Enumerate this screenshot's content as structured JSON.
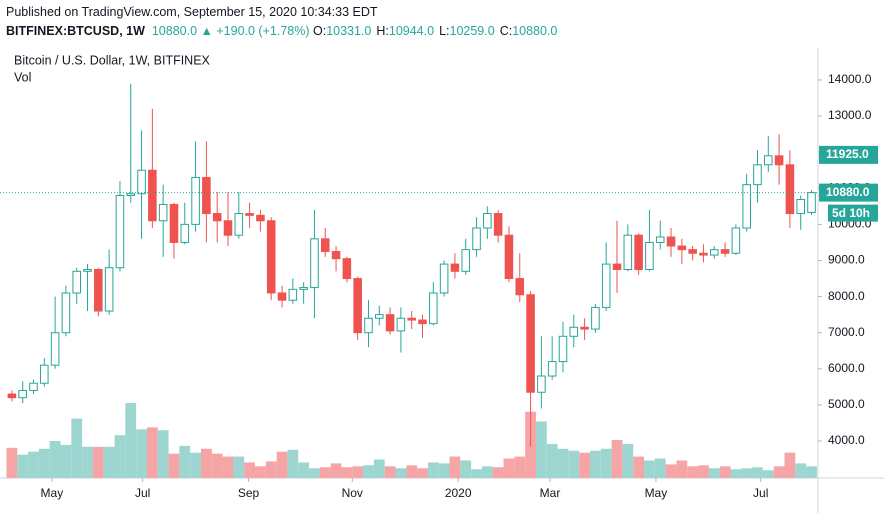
{
  "chart_data": {
    "type": "candlestick",
    "header": {
      "published": "Published on TradingView.com, September 15, 2020 10:34:33 EDT",
      "symbol": "BITFINEX:BTCUSD, 1W",
      "last": "10880.0",
      "arrow": "▲",
      "change": "+190.0 (+1.78%)",
      "ohlc": [
        {
          "key": "O:",
          "value": "10331.0"
        },
        {
          "key": "H:",
          "value": "10944.0"
        },
        {
          "key": "L:",
          "value": "10259.0"
        },
        {
          "key": "C:",
          "value": "10880.0"
        }
      ]
    },
    "title": "Bitcoin / U.S. Dollar, 1W, BITFINEX",
    "volume_label": "Vol",
    "open": [
      5300,
      5200,
      5400,
      5600,
      6100,
      7000,
      8100,
      8700,
      8750,
      7600,
      8800,
      10800,
      10850,
      11500,
      10100,
      10550,
      9500,
      10000,
      11300,
      10300,
      10100,
      9700,
      10300,
      10250,
      10100,
      8100,
      7900,
      8200,
      8250,
      9600,
      9250,
      9050,
      8500,
      7000,
      7400,
      7500,
      7050,
      7400,
      7350,
      7250,
      8100,
      8900,
      8700,
      9300,
      9900,
      10300,
      9700,
      8500,
      8050,
      5350,
      5800,
      6200,
      6900,
      7150,
      7100,
      7700,
      8900,
      8750,
      9700,
      8750,
      9500,
      9650,
      9400,
      9300,
      9200,
      9150,
      9300,
      9200,
      9900,
      11100,
      11650,
      11900,
      11650,
      10300,
      10331
    ],
    "high": [
      5400,
      5650,
      5700,
      6300,
      8000,
      8300,
      8800,
      8900,
      8800,
      9300,
      11200,
      13900,
      12600,
      13200,
      11100,
      10600,
      10600,
      12300,
      12300,
      10900,
      10900,
      10900,
      10600,
      10400,
      10200,
      8300,
      8500,
      8400,
      10400,
      9900,
      9400,
      9100,
      8550,
      7900,
      7750,
      7700,
      7700,
      7600,
      7500,
      8400,
      9000,
      9200,
      9600,
      10200,
      10500,
      10400,
      9950,
      9200,
      8150,
      6900,
      6900,
      7300,
      7500,
      7400,
      7800,
      9500,
      10100,
      10000,
      9750,
      10400,
      10100,
      9900,
      9600,
      9400,
      9450,
      9400,
      9500,
      10000,
      11400,
      12050,
      12450,
      12500,
      12050,
      10800,
      10944
    ],
    "low": [
      5100,
      5050,
      5300,
      5500,
      6000,
      6900,
      7800,
      7600,
      7450,
      7500,
      8700,
      10600,
      9600,
      9900,
      9100,
      9050,
      9450,
      9800,
      9500,
      9500,
      9400,
      9600,
      9900,
      9800,
      7900,
      7700,
      7800,
      7800,
      7400,
      9100,
      8700,
      8400,
      6800,
      6600,
      7200,
      6950,
      6450,
      7100,
      6850,
      7200,
      8000,
      8500,
      8600,
      9100,
      9600,
      9500,
      8400,
      7850,
      3850,
      4900,
      5700,
      5900,
      6600,
      6800,
      7000,
      7600,
      8100,
      8700,
      8600,
      8700,
      9300,
      9100,
      8900,
      9000,
      8950,
      9050,
      9100,
      9150,
      9800,
      10600,
      11450,
      11100,
      9900,
      9850,
      10259
    ],
    "close": [
      5200,
      5400,
      5600,
      6100,
      7000,
      8100,
      8700,
      8750,
      7600,
      8800,
      10800,
      10850,
      11500,
      10100,
      10550,
      9500,
      10000,
      11300,
      10300,
      10100,
      9700,
      10300,
      10250,
      10100,
      8100,
      7900,
      8200,
      8250,
      9600,
      9250,
      9050,
      8500,
      7000,
      7400,
      7500,
      7050,
      7400,
      7350,
      7250,
      8100,
      8900,
      8700,
      9300,
      9900,
      10300,
      9700,
      8500,
      8050,
      5350,
      5800,
      6200,
      6900,
      7150,
      7100,
      7700,
      8900,
      8750,
      9700,
      8750,
      9500,
      9650,
      9400,
      9300,
      9200,
      9150,
      9300,
      9200,
      9900,
      11100,
      11650,
      11900,
      11650,
      10300,
      10690,
      10880
    ],
    "volume": [
      31,
      24,
      27,
      30,
      38,
      34,
      61,
      32,
      32,
      32,
      44,
      77,
      50,
      52,
      49,
      25,
      33,
      26,
      30,
      25,
      22,
      22,
      16,
      12,
      17,
      27,
      29,
      16,
      10,
      11,
      15,
      11,
      12,
      13,
      19,
      12,
      10,
      13,
      10,
      16,
      15,
      22,
      18,
      9,
      12,
      11,
      20,
      22,
      68,
      58,
      35,
      30,
      28,
      26,
      28,
      30,
      39,
      35,
      22,
      18,
      20,
      14,
      18,
      12,
      13,
      10,
      12,
      9,
      10,
      11,
      8,
      12,
      26,
      15,
      12
    ],
    "up_color": "#26a69a",
    "down_color": "#ef5350",
    "volume_up_color": "#9dd6d0",
    "volume_down_color": "#f5a5a5",
    "xlim": [
      -1.1,
      74.6
    ],
    "xticks": [
      {
        "value": 3.7,
        "label": "May"
      },
      {
        "value": 12.1,
        "label": "Jul"
      },
      {
        "value": 21.9,
        "label": "Sep"
      },
      {
        "value": 31.5,
        "label": "Nov"
      },
      {
        "value": 41.3,
        "label": "2020"
      },
      {
        "value": 49.8,
        "label": "Mar"
      },
      {
        "value": 59.6,
        "label": "May"
      },
      {
        "value": 69.3,
        "label": "Jul"
      }
    ],
    "ylim": [
      2975,
      14830
    ],
    "yticks": [
      {
        "value": 4000,
        "label": "4000.0"
      },
      {
        "value": 5000,
        "label": "5000.0"
      },
      {
        "value": 6000,
        "label": "6000.0"
      },
      {
        "value": 7000,
        "label": "7000.0"
      },
      {
        "value": 8000,
        "label": "8000.0"
      },
      {
        "value": 9000,
        "label": "9000.0"
      },
      {
        "value": 10000,
        "label": "10000.0"
      },
      {
        "value": 11000,
        "label": "11000.0"
      },
      {
        "value": 12000,
        "label": "12000.0"
      },
      {
        "value": 13000,
        "label": "13000.0"
      },
      {
        "value": 14000,
        "label": "14000.0"
      }
    ],
    "grid": false,
    "price_markers": [
      {
        "value": 11925,
        "label": "11925.0",
        "color": "#26a69a",
        "line": false
      },
      {
        "value": 10880,
        "label": "10880.0",
        "color": "#26a69a",
        "line": true
      }
    ],
    "countdown": "5d 10h"
  }
}
